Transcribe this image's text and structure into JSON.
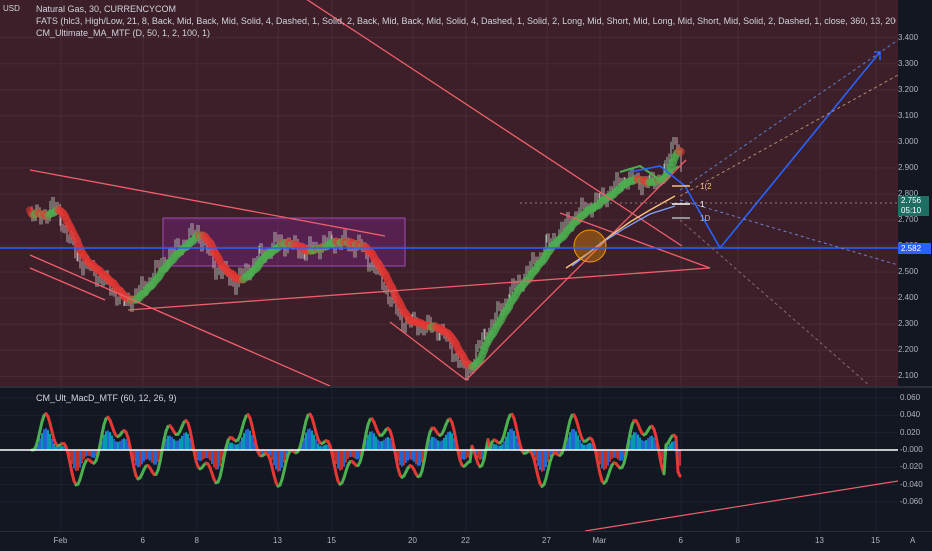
{
  "chart": {
    "currency_label": "USD",
    "symbol_title": "Natural Gas, 30, CURRENCYCOM",
    "fats_legend": "FATS (hlc3, High/Low, 21, 8, Back, Mid, Back, Mid, Solid, 4, Dashed, 1, Solid, 2, Back, Mid, Back, Mid, Solid, 4, Dashed, 1, Solid, 2, Long, Mid, Short, Mid, Long, Mid, Short, Mid, Solid, 2, Dashed, 1, close, 360, 13, 200, Line, 4, close, 720, 13, 200, Line, 4",
    "ma_legend": "CM_Ultimate_MA_MTF (D, 50, 1, 2, 100, 1)",
    "oscillator_legend": "CM_Ult_MacD_MTF (60, 12, 26, 9)",
    "current_price": "2.756",
    "current_countdown": "05:10",
    "blue_line_price": "2.582",
    "level_labels": [
      "1(2",
      "1",
      "1D"
    ],
    "auto_button": "A"
  },
  "colors": {
    "price_bg": "#3c1f29",
    "up": "#4caf50",
    "down": "#e53935",
    "line_red": "#ef5f6b",
    "line_blue": "#2962ff",
    "macd_blue": "#2979ff"
  },
  "chart_data": [
    {
      "type": "line",
      "title": "Natural Gas, 30, CURRENCYCOM",
      "ylabel": "USD",
      "ylim": [
        2.08,
        3.46
      ],
      "y_ticks": [
        "3.400",
        "3.300",
        "3.200",
        "3.100",
        "3.000",
        "2.900",
        "2.800",
        "2.700",
        "2.600",
        "2.500",
        "2.400",
        "2.300",
        "2.200",
        "2.100"
      ],
      "x_ticks": [
        "Feb",
        "6",
        "8",
        "13",
        "15",
        "20",
        "22",
        "27",
        "Mar",
        "6",
        "8",
        "13",
        "15"
      ],
      "series": [
        {
          "name": "Natural Gas",
          "x": [
            "Feb",
            "6",
            "8",
            "13",
            "15",
            "20",
            "22",
            "27",
            "Mar",
            "6"
          ],
          "values": [
            2.7,
            2.4,
            2.6,
            2.62,
            2.64,
            2.4,
            2.12,
            2.62,
            2.84,
            2.9
          ]
        }
      ]
    },
    {
      "type": "bar",
      "title": "CM_Ult_MacD_MTF (60, 12, 26, 9)",
      "ylim": [
        -0.07,
        0.065
      ],
      "y_ticks": [
        "0.060",
        "0.040",
        "0.020",
        "-0.000",
        "-0.020",
        "-0.040",
        "-0.060"
      ]
    }
  ]
}
